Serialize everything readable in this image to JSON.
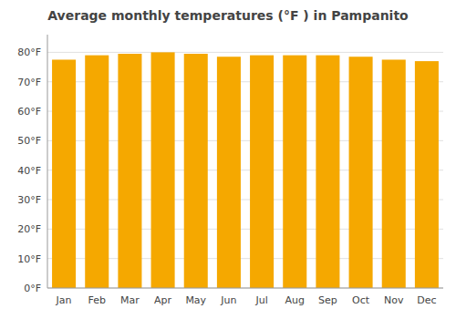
{
  "chart_data": {
    "type": "bar",
    "title": "Average monthly temperatures (°F ) in Pampanito",
    "categories": [
      "Jan",
      "Feb",
      "Mar",
      "Apr",
      "May",
      "Jun",
      "Jul",
      "Aug",
      "Sep",
      "Oct",
      "Nov",
      "Dec"
    ],
    "values": [
      77.5,
      79.0,
      79.5,
      80.0,
      79.5,
      78.5,
      79.0,
      79.0,
      79.0,
      78.5,
      77.5,
      77.0
    ],
    "color": "#F5A800",
    "ylim": [
      0,
      86
    ],
    "yticks": [
      {
        "value": 0,
        "label": "0°F"
      },
      {
        "value": 10,
        "label": "10°F"
      },
      {
        "value": 20,
        "label": "20°F"
      },
      {
        "value": 30,
        "label": "30°F"
      },
      {
        "value": 40,
        "label": "40°F"
      },
      {
        "value": 50,
        "label": "50°F"
      },
      {
        "value": 60,
        "label": "60°F"
      },
      {
        "value": 70,
        "label": "70°F"
      },
      {
        "value": 80,
        "label": "80°F"
      }
    ],
    "grid": true
  }
}
